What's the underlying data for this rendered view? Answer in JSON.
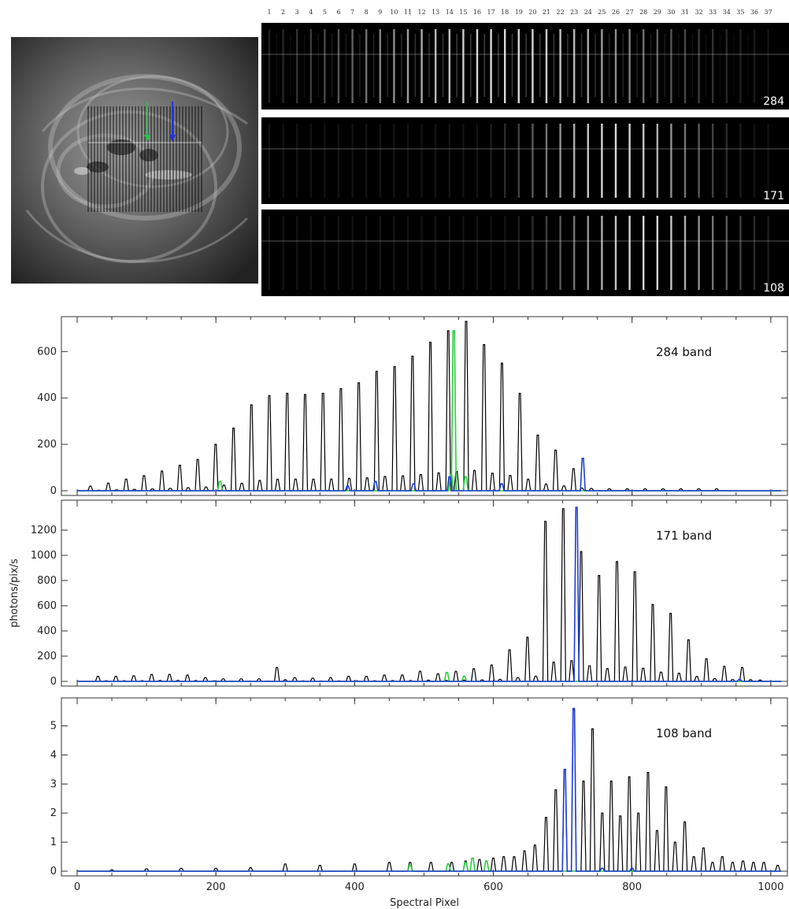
{
  "images": {
    "slit_numbers": [
      "1",
      "2",
      "3",
      "4",
      "5",
      "6",
      "7",
      "8",
      "9",
      "10",
      "11",
      "12",
      "13",
      "14",
      "15",
      "16",
      "17",
      "18",
      "19",
      "20",
      "21",
      "22",
      "23",
      "24",
      "25",
      "26",
      "27",
      "28",
      "29",
      "30",
      "31",
      "32",
      "33",
      "34",
      "35",
      "36",
      "37"
    ],
    "strips": [
      {
        "label": "284",
        "peak_index": 17
      },
      {
        "label": "171",
        "peak_index": 25
      },
      {
        "label": "108",
        "peak_index": 27
      }
    ],
    "colors": {
      "green_arrow": "#22c44a",
      "blue_arrow": "#2233dd"
    }
  },
  "chart_data": [
    {
      "type": "line",
      "title": "284 band",
      "xlabel": "",
      "ylabel": "",
      "xlim": [
        0,
        1024
      ],
      "ylim": [
        0,
        730
      ],
      "xticks": [
        0,
        200,
        400,
        600,
        800,
        1000
      ],
      "xticklabels": [
        "",
        "",
        "",
        "",
        "",
        ""
      ],
      "yticks": [
        0,
        200,
        400,
        600
      ],
      "peak_spacing": 25.8,
      "first_peak": 19,
      "series": [
        {
          "color": "#000000",
          "values": [
            20,
            33,
            50,
            65,
            85,
            110,
            135,
            200,
            270,
            370,
            410,
            420,
            415,
            420,
            440,
            465,
            515,
            535,
            580,
            640,
            690,
            730,
            630,
            550,
            420,
            240,
            175,
            95,
            10,
            8,
            8,
            8,
            8,
            8,
            8,
            8
          ]
        },
        {
          "color": "#2ecc40",
          "peaks": [
            [
              206,
              40
            ],
            [
              539,
              70
            ],
            [
              543,
              690
            ],
            [
              560,
              60
            ]
          ]
        },
        {
          "color": "#1f3fd8",
          "peaks": [
            [
              390,
              20
            ],
            [
              430,
              40
            ],
            [
              485,
              30
            ],
            [
              537,
              60
            ],
            [
              612,
              30
            ],
            [
              729,
              140
            ]
          ]
        }
      ]
    },
    {
      "type": "line",
      "title": "171 band",
      "xlabel": "",
      "ylabel": "photons/pix/s",
      "xlim": [
        0,
        1024
      ],
      "ylim": [
        0,
        1400
      ],
      "xticks": [
        0,
        200,
        400,
        600,
        800,
        1000
      ],
      "xticklabels": [
        "",
        "",
        "",
        "",
        "",
        ""
      ],
      "yticks": [
        0,
        200,
        400,
        600,
        800,
        1000,
        1200
      ],
      "peak_spacing": 25.8,
      "first_peak": 30,
      "series": [
        {
          "color": "#000000",
          "values": [
            40,
            40,
            45,
            55,
            55,
            50,
            30,
            20,
            20,
            20,
            110,
            30,
            25,
            30,
            40,
            40,
            50,
            50,
            80,
            60,
            80,
            100,
            130,
            250,
            350,
            1270,
            1370,
            1030,
            840,
            950,
            870,
            610,
            540,
            330,
            180,
            120,
            110,
            10
          ]
        },
        {
          "color": "#2ecc40",
          "peaks": [
            [
              533,
              70
            ],
            [
              558,
              40
            ]
          ]
        },
        {
          "color": "#1f3fd8",
          "peaks": [
            [
              720,
              1380
            ],
            [
              955,
              15
            ]
          ]
        }
      ]
    },
    {
      "type": "line",
      "title": "108 band",
      "xlabel": "Spectral Pixel",
      "ylabel": "",
      "xlim": [
        0,
        1024
      ],
      "ylim": [
        0,
        5.8
      ],
      "xticks": [
        0,
        200,
        400,
        600,
        800,
        1000
      ],
      "xticklabels": [
        "0",
        "200",
        "400",
        "600",
        "800",
        "1000"
      ],
      "yticks": [
        0,
        1,
        2,
        3,
        4,
        5
      ],
      "series": [
        {
          "color": "#000000",
          "peaks": [
            [
              50,
              0.05
            ],
            [
              100,
              0.08
            ],
            [
              150,
              0.1
            ],
            [
              200,
              0.1
            ],
            [
              250,
              0.12
            ],
            [
              300,
              0.25
            ],
            [
              350,
              0.2
            ],
            [
              400,
              0.25
            ],
            [
              450,
              0.3
            ],
            [
              480,
              0.3
            ],
            [
              510,
              0.3
            ],
            [
              540,
              0.3
            ],
            [
              560,
              0.35
            ],
            [
              580,
              0.4
            ],
            [
              600,
              0.45
            ],
            [
              615,
              0.5
            ],
            [
              630,
              0.5
            ],
            [
              645,
              0.7
            ],
            [
              660,
              0.9
            ],
            [
              676,
              1.85
            ],
            [
              690,
              2.8
            ],
            [
              703,
              3.5
            ],
            [
              716,
              5.55
            ],
            [
              730,
              3.1
            ],
            [
              743,
              4.9
            ],
            [
              757,
              2.0
            ],
            [
              770,
              3.1
            ],
            [
              783,
              1.9
            ],
            [
              796,
              3.25
            ],
            [
              809,
              2.0
            ],
            [
              823,
              3.4
            ],
            [
              836,
              1.4
            ],
            [
              849,
              2.9
            ],
            [
              862,
              1.0
            ],
            [
              876,
              1.7
            ],
            [
              889,
              0.5
            ],
            [
              903,
              0.8
            ],
            [
              916,
              0.3
            ],
            [
              930,
              0.5
            ],
            [
              945,
              0.3
            ],
            [
              960,
              0.35
            ],
            [
              975,
              0.3
            ],
            [
              990,
              0.3
            ],
            [
              1010,
              0.2
            ]
          ]
        },
        {
          "color": "#2ecc40",
          "peaks": [
            [
              480,
              0.2
            ],
            [
              535,
              0.25
            ],
            [
              560,
              0.3
            ],
            [
              570,
              0.45
            ],
            [
              590,
              0.35
            ]
          ]
        },
        {
          "color": "#1f3fd8",
          "peaks": [
            [
              703,
              3.5
            ],
            [
              716,
              5.6
            ],
            [
              757,
              0.1
            ],
            [
              800,
              0.1
            ]
          ]
        }
      ]
    }
  ]
}
